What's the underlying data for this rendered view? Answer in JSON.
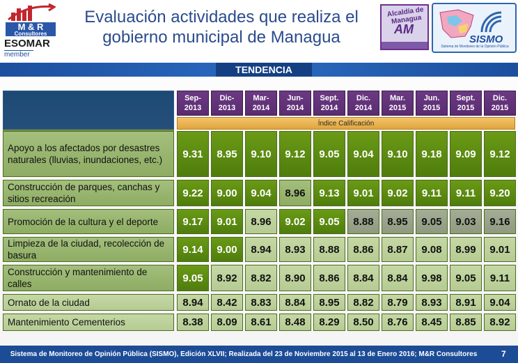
{
  "header": {
    "title_line1": "Evaluación  actividades que realiza el",
    "title_line2": "gobierno municipal de Managua",
    "logo_mr_line1": "M & R",
    "logo_mr_line2": "Consultores",
    "logo_esomar": "ESOMAR",
    "logo_member": "member",
    "logo_alcaldia": "Alcaldía de Managua",
    "logo_am": "AM",
    "logo_sismo": "SISMO",
    "logo_sismo_sub": "Sistema de Monitoreo de la Opinión Pública"
  },
  "banner": {
    "label": "TENDENCIA"
  },
  "table": {
    "columns": [
      {
        "line1": "Sep-",
        "line2": "2013"
      },
      {
        "line1": "Dic-",
        "line2": "2013"
      },
      {
        "line1": "Mar-",
        "line2": "2014"
      },
      {
        "line1": "Jun-",
        "line2": "2014"
      },
      {
        "line1": "Sept.",
        "line2": "2014"
      },
      {
        "line1": "Dic.",
        "line2": "2014"
      },
      {
        "line1": "Mar.",
        "line2": "2015"
      },
      {
        "line1": "Jun.",
        "line2": "2015"
      },
      {
        "line1": "Sept.",
        "line2": "2015"
      },
      {
        "line1": "Dic.",
        "line2": "2015"
      }
    ],
    "index_label": "Índice Calificación",
    "rows": [
      {
        "label": "Apoyo a los afectados por desastres naturales (lluvias, inundaciones, etc.)",
        "values": [
          "9.31",
          "8.95",
          "9.10",
          "9.12",
          "9.05",
          "9.04",
          "9.10",
          "9.18",
          "9.09",
          "9.12"
        ],
        "shades": [
          "dark",
          "dark",
          "dark",
          "dark",
          "dark",
          "dark",
          "dark",
          "dark",
          "dark",
          "dark"
        ]
      },
      {
        "label": "Construcción de parques, canchas y sitios recreación",
        "values": [
          "9.22",
          "9.00",
          "9.04",
          "8.96",
          "9.13",
          "9.01",
          "9.02",
          "9.11",
          "9.11",
          "9.20"
        ],
        "shades": [
          "dark",
          "dark",
          "dark",
          "mid",
          "dark",
          "dark",
          "dark",
          "dark",
          "dark",
          "dark"
        ]
      },
      {
        "label": "Promoción de la cultura y el deporte",
        "values": [
          "9.17",
          "9.01",
          "8.96",
          "9.02",
          "9.05",
          "8.88",
          "8.95",
          "9.05",
          "9.03",
          "9.16"
        ],
        "shades": [
          "dark",
          "dark",
          "light",
          "dark",
          "dark",
          "gray",
          "gray",
          "gray",
          "gray",
          "gray"
        ]
      },
      {
        "label": "Limpieza de la ciudad, recolección de basura",
        "values": [
          "9.14",
          "9.00",
          "8.94",
          "8.93",
          "8.88",
          "8.86",
          "8.87",
          "9.08",
          "8.99",
          "9.01"
        ],
        "shades": [
          "dark",
          "dark",
          "light",
          "light",
          "light",
          "light",
          "light",
          "light",
          "light",
          "light"
        ]
      },
      {
        "label": "Construcción y mantenimiento de calles",
        "values": [
          "9.05",
          "8.92",
          "8.82",
          "8.90",
          "8.86",
          "8.84",
          "8.84",
          "9.98",
          "9.05",
          "9.11"
        ],
        "shades": [
          "dark",
          "light",
          "light",
          "light",
          "light",
          "light",
          "light",
          "light",
          "light",
          "light"
        ]
      },
      {
        "label": "Ornato de la ciudad",
        "values": [
          "8.94",
          "8.42",
          "8.83",
          "8.84",
          "8.95",
          "8.82",
          "8.79",
          "8.93",
          "8.91",
          "9.04"
        ],
        "shades": [
          "light",
          "light",
          "light",
          "light",
          "light",
          "light",
          "light",
          "light",
          "light",
          "light"
        ]
      },
      {
        "label": "Mantenimiento Cementerios",
        "values": [
          "8.38",
          "8.09",
          "8.61",
          "8.48",
          "8.29",
          "8.50",
          "8.76",
          "8.45",
          "8.85",
          "8.92"
        ],
        "shades": [
          "light",
          "light",
          "light",
          "light",
          "light",
          "light",
          "light",
          "light",
          "light",
          "light"
        ]
      }
    ]
  },
  "footer": {
    "text": "Sistema de Monitoreo de Opinión Pública (SISMO), Edición XLVII; Realizada del  23 de Noviembre 2015 al 13 de Enero 2016; M&R Consultores",
    "page": "7"
  },
  "colors": {
    "header_purple": "#6b3a82",
    "green_dark": "#5a8a10",
    "banner_blue": "#1d4c97",
    "index_orange": "#e9b04f"
  }
}
